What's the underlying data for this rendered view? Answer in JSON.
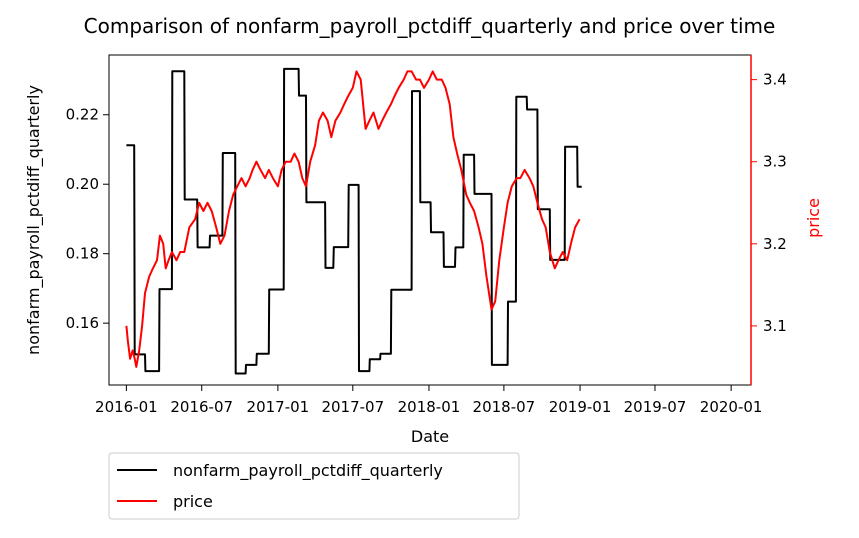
{
  "chart_data": {
    "type": "line",
    "title": "Comparison of nonfarm_payroll_pctdiff_quarterly and price over time",
    "xlabel": "Date",
    "ylabel_left": "nonfarm_payroll_pctdiff_quarterly",
    "ylabel_right": "price",
    "x_tick_labels": [
      "2016-01",
      "2016-07",
      "2017-01",
      "2017-07",
      "2018-01",
      "2018-07",
      "2019-01",
      "2019-07",
      "2020-01"
    ],
    "y_left_ticks": [
      0.16,
      0.18,
      0.2,
      0.22
    ],
    "y_left_tick_labels": [
      "0.16",
      "0.18",
      "0.20",
      "0.22"
    ],
    "y_left_lim": [
      0.1422,
      0.2372
    ],
    "y_right_ticks": [
      3.1,
      3.2,
      3.3,
      3.4
    ],
    "y_right_tick_labels": [
      "3.1",
      "3.2",
      "3.3",
      "3.4"
    ],
    "y_right_lim": [
      3.028,
      3.43
    ],
    "x_range": [
      "2015-11-20",
      "2020-02-18"
    ],
    "grid": false,
    "legend_placement": "below plot, left",
    "colors": {
      "left_axis": "#000000",
      "right_axis": "#ff0000"
    },
    "series": [
      {
        "name": "nonfarm_payroll_pctdiff_quarterly",
        "axis": "left",
        "color": "#000000",
        "step": true,
        "points": [
          [
            "2016-01-01",
            0.2112
          ],
          [
            "2016-01-20",
            0.2112
          ],
          [
            "2016-01-21",
            0.151
          ],
          [
            "2016-02-15",
            0.151
          ],
          [
            "2016-02-16",
            0.1462
          ],
          [
            "2016-03-20",
            0.1462
          ],
          [
            "2016-03-21",
            0.1698
          ],
          [
            "2016-04-20",
            0.1698
          ],
          [
            "2016-04-21",
            0.2325
          ],
          [
            "2016-05-20",
            0.2325
          ],
          [
            "2016-05-21",
            0.1956
          ],
          [
            "2016-06-20",
            0.1956
          ],
          [
            "2016-06-21",
            0.1818
          ],
          [
            "2016-07-20",
            0.1818
          ],
          [
            "2016-07-21",
            0.1852
          ],
          [
            "2016-08-20",
            0.1852
          ],
          [
            "2016-08-21",
            0.209
          ],
          [
            "2016-09-20",
            0.209
          ],
          [
            "2016-09-21",
            0.1455
          ],
          [
            "2016-10-15",
            0.1455
          ],
          [
            "2016-10-16",
            0.148
          ],
          [
            "2016-11-10",
            0.148
          ],
          [
            "2016-11-11",
            0.1512
          ],
          [
            "2016-12-10",
            0.1512
          ],
          [
            "2016-12-11",
            0.1697
          ],
          [
            "2017-01-15",
            0.1697
          ],
          [
            "2017-01-16",
            0.2332
          ],
          [
            "2017-02-20",
            0.2332
          ],
          [
            "2017-02-21",
            0.2255
          ],
          [
            "2017-03-10",
            0.2255
          ],
          [
            "2017-03-11",
            0.1948
          ],
          [
            "2017-04-25",
            0.1948
          ],
          [
            "2017-04-26",
            0.1759
          ],
          [
            "2017-05-15",
            0.1759
          ],
          [
            "2017-05-16",
            0.1819
          ],
          [
            "2017-06-20",
            0.1819
          ],
          [
            "2017-06-21",
            0.1998
          ],
          [
            "2017-07-15",
            0.1998
          ],
          [
            "2017-07-16",
            0.1462
          ],
          [
            "2017-08-10",
            0.1462
          ],
          [
            "2017-08-11",
            0.1496
          ],
          [
            "2017-09-05",
            0.1496
          ],
          [
            "2017-09-06",
            0.1512
          ],
          [
            "2017-10-01",
            0.1512
          ],
          [
            "2017-10-02",
            0.1696
          ],
          [
            "2017-11-20",
            0.1696
          ],
          [
            "2017-11-21",
            0.2268
          ],
          [
            "2017-12-10",
            0.2268
          ],
          [
            "2017-12-11",
            0.1948
          ],
          [
            "2018-01-05",
            0.1948
          ],
          [
            "2018-01-06",
            0.1862
          ],
          [
            "2018-02-05",
            0.1862
          ],
          [
            "2018-02-06",
            0.1762
          ],
          [
            "2018-03-05",
            0.1762
          ],
          [
            "2018-03-06",
            0.1818
          ],
          [
            "2018-03-25",
            0.1818
          ],
          [
            "2018-03-26",
            0.2085
          ],
          [
            "2018-04-20",
            0.2085
          ],
          [
            "2018-04-21",
            0.1972
          ],
          [
            "2018-06-01",
            0.1972
          ],
          [
            "2018-06-02",
            0.148
          ],
          [
            "2018-07-10",
            0.148
          ],
          [
            "2018-07-11",
            0.1662
          ],
          [
            "2018-07-30",
            0.1662
          ],
          [
            "2018-07-31",
            0.2252
          ],
          [
            "2018-08-25",
            0.2252
          ],
          [
            "2018-08-26",
            0.2215
          ],
          [
            "2018-09-20",
            0.2215
          ],
          [
            "2018-09-21",
            0.1928
          ],
          [
            "2018-10-20",
            0.1928
          ],
          [
            "2018-10-21",
            0.1782
          ],
          [
            "2018-11-25",
            0.1782
          ],
          [
            "2018-11-26",
            0.2108
          ],
          [
            "2018-12-25",
            0.2108
          ],
          [
            "2018-12-26",
            0.1993
          ],
          [
            "2019-01-05",
            0.1993
          ]
        ]
      },
      {
        "name": "price",
        "axis": "right",
        "color": "#ff0000",
        "step": false,
        "points": [
          [
            "2016-01-01",
            3.1
          ],
          [
            "2016-01-05",
            3.08
          ],
          [
            "2016-01-10",
            3.06
          ],
          [
            "2016-01-16",
            3.07
          ],
          [
            "2016-01-21",
            3.06
          ],
          [
            "2016-01-25",
            3.05
          ],
          [
            "2016-02-01",
            3.07
          ],
          [
            "2016-02-08",
            3.1
          ],
          [
            "2016-02-15",
            3.14
          ],
          [
            "2016-02-25",
            3.16
          ],
          [
            "2016-03-05",
            3.17
          ],
          [
            "2016-03-15",
            3.18
          ],
          [
            "2016-03-22",
            3.21
          ],
          [
            "2016-03-30",
            3.2
          ],
          [
            "2016-04-05",
            3.17
          ],
          [
            "2016-04-12",
            3.18
          ],
          [
            "2016-04-20",
            3.19
          ],
          [
            "2016-05-01",
            3.18
          ],
          [
            "2016-05-10",
            3.19
          ],
          [
            "2016-05-20",
            3.19
          ],
          [
            "2016-06-01",
            3.22
          ],
          [
            "2016-06-15",
            3.23
          ],
          [
            "2016-06-25",
            3.25
          ],
          [
            "2016-07-05",
            3.24
          ],
          [
            "2016-07-15",
            3.25
          ],
          [
            "2016-07-25",
            3.24
          ],
          [
            "2016-08-05",
            3.22
          ],
          [
            "2016-08-15",
            3.2
          ],
          [
            "2016-08-25",
            3.21
          ],
          [
            "2016-09-05",
            3.24
          ],
          [
            "2016-09-15",
            3.26
          ],
          [
            "2016-09-25",
            3.27
          ],
          [
            "2016-10-05",
            3.28
          ],
          [
            "2016-10-15",
            3.27
          ],
          [
            "2016-10-25",
            3.28
          ],
          [
            "2016-11-01",
            3.29
          ],
          [
            "2016-11-10",
            3.3
          ],
          [
            "2016-11-20",
            3.29
          ],
          [
            "2016-12-01",
            3.28
          ],
          [
            "2016-12-10",
            3.29
          ],
          [
            "2016-12-20",
            3.28
          ],
          [
            "2017-01-01",
            3.27
          ],
          [
            "2017-01-10",
            3.29
          ],
          [
            "2017-01-20",
            3.3
          ],
          [
            "2017-02-01",
            3.3
          ],
          [
            "2017-02-10",
            3.31
          ],
          [
            "2017-02-20",
            3.3
          ],
          [
            "2017-03-01",
            3.28
          ],
          [
            "2017-03-10",
            3.27
          ],
          [
            "2017-03-20",
            3.3
          ],
          [
            "2017-04-01",
            3.32
          ],
          [
            "2017-04-10",
            3.35
          ],
          [
            "2017-04-20",
            3.36
          ],
          [
            "2017-05-01",
            3.35
          ],
          [
            "2017-05-10",
            3.33
          ],
          [
            "2017-05-20",
            3.35
          ],
          [
            "2017-06-01",
            3.36
          ],
          [
            "2017-06-10",
            3.37
          ],
          [
            "2017-06-20",
            3.38
          ],
          [
            "2017-07-01",
            3.39
          ],
          [
            "2017-07-10",
            3.41
          ],
          [
            "2017-07-20",
            3.4
          ],
          [
            "2017-08-01",
            3.34
          ],
          [
            "2017-08-10",
            3.35
          ],
          [
            "2017-08-20",
            3.36
          ],
          [
            "2017-09-01",
            3.34
          ],
          [
            "2017-09-10",
            3.35
          ],
          [
            "2017-09-20",
            3.36
          ],
          [
            "2017-10-01",
            3.37
          ],
          [
            "2017-10-10",
            3.38
          ],
          [
            "2017-10-20",
            3.39
          ],
          [
            "2017-11-01",
            3.4
          ],
          [
            "2017-11-10",
            3.41
          ],
          [
            "2017-11-20",
            3.41
          ],
          [
            "2017-12-01",
            3.4
          ],
          [
            "2017-12-10",
            3.4
          ],
          [
            "2017-12-20",
            3.39
          ],
          [
            "2018-01-01",
            3.4
          ],
          [
            "2018-01-10",
            3.41
          ],
          [
            "2018-01-20",
            3.4
          ],
          [
            "2018-02-01",
            3.4
          ],
          [
            "2018-02-10",
            3.39
          ],
          [
            "2018-02-20",
            3.37
          ],
          [
            "2018-03-01",
            3.33
          ],
          [
            "2018-03-10",
            3.31
          ],
          [
            "2018-03-20",
            3.29
          ],
          [
            "2018-04-01",
            3.26
          ],
          [
            "2018-04-10",
            3.25
          ],
          [
            "2018-04-20",
            3.24
          ],
          [
            "2018-05-01",
            3.22
          ],
          [
            "2018-05-10",
            3.2
          ],
          [
            "2018-05-20",
            3.16
          ],
          [
            "2018-06-01",
            3.12
          ],
          [
            "2018-06-10",
            3.13
          ],
          [
            "2018-06-20",
            3.18
          ],
          [
            "2018-07-01",
            3.22
          ],
          [
            "2018-07-10",
            3.25
          ],
          [
            "2018-07-20",
            3.27
          ],
          [
            "2018-08-01",
            3.28
          ],
          [
            "2018-08-10",
            3.28
          ],
          [
            "2018-08-20",
            3.29
          ],
          [
            "2018-09-01",
            3.28
          ],
          [
            "2018-09-10",
            3.27
          ],
          [
            "2018-09-20",
            3.25
          ],
          [
            "2018-10-01",
            3.23
          ],
          [
            "2018-10-10",
            3.22
          ],
          [
            "2018-10-20",
            3.19
          ],
          [
            "2018-11-01",
            3.17
          ],
          [
            "2018-11-10",
            3.18
          ],
          [
            "2018-11-20",
            3.19
          ],
          [
            "2018-12-01",
            3.18
          ],
          [
            "2018-12-10",
            3.2
          ],
          [
            "2018-12-20",
            3.22
          ],
          [
            "2018-12-31",
            3.23
          ]
        ]
      }
    ]
  }
}
